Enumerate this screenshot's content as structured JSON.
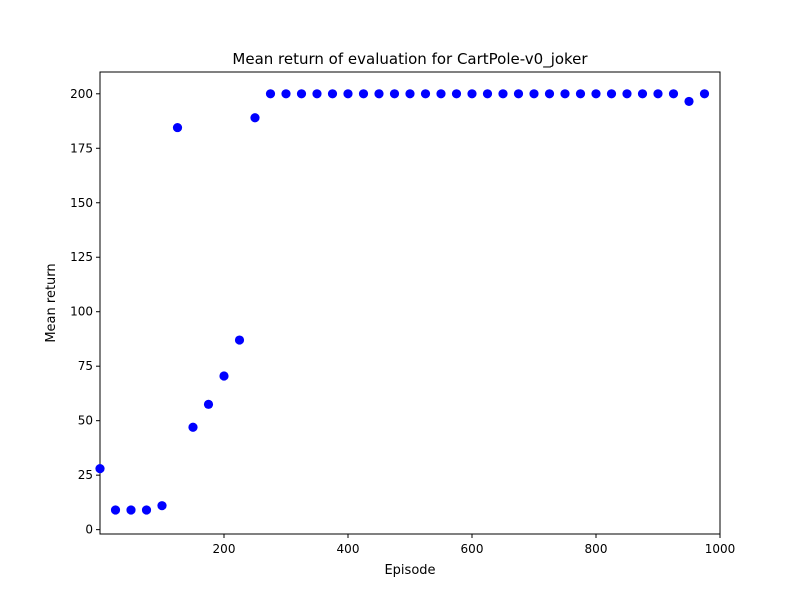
{
  "chart_data": {
    "type": "scatter",
    "title": "Mean return of evaluation for CartPole-v0_joker",
    "xlabel": "Episode",
    "ylabel": "Mean return",
    "xlim": [
      0,
      1000
    ],
    "ylim": [
      -2,
      210
    ],
    "xticks": [
      200,
      400,
      600,
      800,
      1000
    ],
    "yticks": [
      0,
      25,
      50,
      75,
      100,
      125,
      150,
      175,
      200
    ],
    "grid": false,
    "legend": "none",
    "marker_color": "#0000ff",
    "series": [
      {
        "x": [
          0,
          25,
          50,
          75,
          100,
          125,
          150,
          175,
          200,
          225,
          250,
          275,
          300,
          325,
          350,
          375,
          400,
          425,
          450,
          475,
          500,
          525,
          550,
          575,
          600,
          625,
          650,
          675,
          700,
          725,
          750,
          775,
          800,
          825,
          850,
          875,
          900,
          925,
          950,
          975
        ],
        "y": [
          28,
          9,
          9,
          9,
          11,
          184.5,
          47,
          57.5,
          70.5,
          87,
          189,
          200,
          200,
          200,
          200,
          200,
          200,
          200,
          200,
          200,
          200,
          200,
          200,
          200,
          200,
          200,
          200,
          200,
          200,
          200,
          200,
          200,
          200,
          200,
          200,
          200,
          200,
          200,
          196.5,
          200
        ]
      }
    ]
  }
}
